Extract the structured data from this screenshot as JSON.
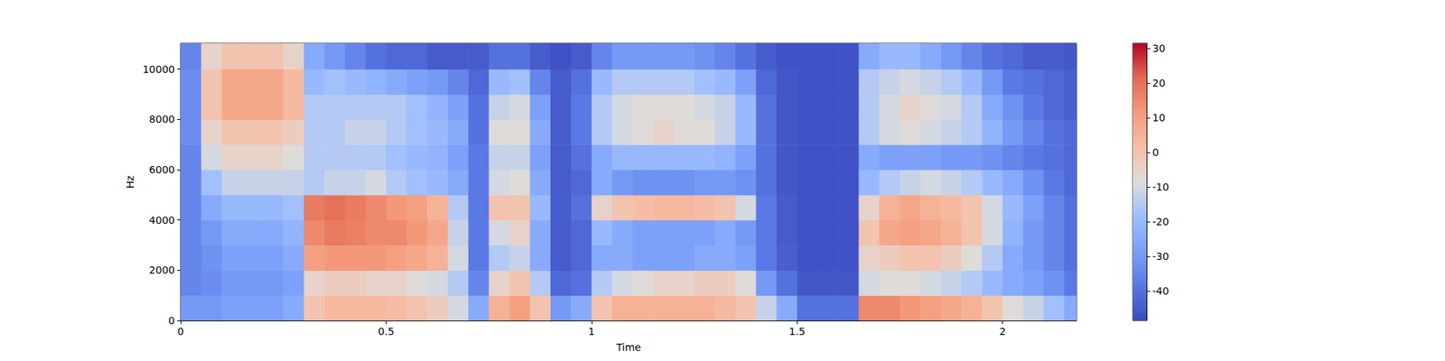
{
  "chart_data": {
    "type": "heatmap",
    "x_label": "Time",
    "y_label": "Hz",
    "xlim": [
      0,
      2.18
    ],
    "xticks": [
      0,
      0.5,
      1,
      1.5,
      2
    ],
    "ylim": [
      0,
      11025
    ],
    "yticks": [
      0,
      2000,
      4000,
      6000,
      8000,
      10000
    ],
    "grid": false,
    "x_edges": [
      0,
      0.05,
      0.1,
      0.15,
      0.2,
      0.25,
      0.3,
      0.35,
      0.4,
      0.45,
      0.5,
      0.55,
      0.6,
      0.65,
      0.7,
      0.75,
      0.8,
      0.85,
      0.9,
      0.95,
      1,
      1.05,
      1.1,
      1.15,
      1.2,
      1.25,
      1.3,
      1.35,
      1.4,
      1.45,
      1.5,
      1.55,
      1.6,
      1.65,
      1.7,
      1.75,
      1.8,
      1.85,
      1.9,
      1.95,
      2,
      2.05,
      2.1,
      2.15,
      2.2
    ],
    "y_edges": [
      0,
      1000,
      2000,
      3000,
      4000,
      5000,
      6000,
      7000,
      8000,
      9000,
      10000,
      11025
    ],
    "cells": [
      [
        -30,
        -35,
        -35,
        -35,
        -35,
        -35,
        -35,
        -33,
        -33,
        -33,
        -35
      ],
      [
        -30,
        -33,
        -32,
        -30,
        -25,
        -18,
        -10,
        -5,
        0,
        0,
        -5
      ],
      [
        -28,
        -30,
        -28,
        -25,
        -20,
        -12,
        -5,
        0,
        8,
        8,
        0
      ],
      [
        -28,
        -30,
        -28,
        -25,
        -20,
        -12,
        -5,
        0,
        8,
        8,
        0
      ],
      [
        -28,
        -30,
        -28,
        -25,
        -20,
        -12,
        -5,
        0,
        8,
        8,
        0
      ],
      [
        -25,
        -28,
        -25,
        -22,
        -18,
        -12,
        -8,
        -3,
        3,
        3,
        -5
      ],
      [
        0,
        -5,
        10,
        15,
        18,
        -15,
        -15,
        -15,
        -15,
        -20,
        -25
      ],
      [
        3,
        -3,
        12,
        18,
        20,
        -12,
        -15,
        -15,
        -15,
        -18,
        -30
      ],
      [
        3,
        -3,
        12,
        17,
        18,
        -12,
        -15,
        -12,
        -15,
        -20,
        -35
      ],
      [
        3,
        -5,
        12,
        15,
        15,
        -10,
        -15,
        -12,
        -15,
        -22,
        -40
      ],
      [
        2,
        -5,
        10,
        15,
        12,
        -15,
        -18,
        -15,
        -15,
        -25,
        -42
      ],
      [
        0,
        -8,
        8,
        12,
        10,
        -18,
        -20,
        -18,
        -18,
        -28,
        -42
      ],
      [
        -3,
        -10,
        5,
        8,
        5,
        -20,
        -22,
        -20,
        -22,
        -30,
        -45
      ],
      [
        -10,
        -15,
        -10,
        -12,
        -15,
        -25,
        -28,
        -25,
        -28,
        -35,
        -45
      ],
      [
        -25,
        -35,
        -38,
        -38,
        -38,
        -38,
        -38,
        -40,
        -40,
        -42,
        -45
      ],
      [
        5,
        -5,
        -15,
        -10,
        0,
        -10,
        -12,
        -8,
        -12,
        -20,
        -40
      ],
      [
        10,
        0,
        -12,
        -5,
        0,
        -8,
        -12,
        -8,
        -10,
        -18,
        -40
      ],
      [
        0,
        -15,
        -25,
        -25,
        -20,
        -25,
        -28,
        -25,
        -28,
        -35,
        -45
      ],
      [
        -30,
        -42,
        -45,
        -45,
        -45,
        -45,
        -45,
        -45,
        -45,
        -45,
        -47
      ],
      [
        -25,
        -40,
        -42,
        -42,
        -40,
        -42,
        -40,
        -38,
        -38,
        -40,
        -45
      ],
      [
        0,
        -15,
        -25,
        -20,
        -5,
        -25,
        -25,
        -15,
        -15,
        -20,
        -35
      ],
      [
        5,
        -10,
        -25,
        -25,
        0,
        -30,
        -20,
        -10,
        -10,
        -15,
        -30
      ],
      [
        5,
        -8,
        -28,
        -28,
        2,
        -32,
        -20,
        -8,
        -8,
        -15,
        -30
      ],
      [
        5,
        -5,
        -28,
        -28,
        3,
        -32,
        -20,
        -5,
        -8,
        -15,
        -30
      ],
      [
        5,
        -5,
        -28,
        -28,
        3,
        -32,
        -20,
        -8,
        -8,
        -15,
        -30
      ],
      [
        5,
        -3,
        -25,
        -28,
        2,
        -30,
        -20,
        -8,
        -10,
        -18,
        -32
      ],
      [
        3,
        -3,
        -25,
        -25,
        0,
        -30,
        -22,
        -12,
        -12,
        -20,
        -35
      ],
      [
        0,
        -8,
        -28,
        -30,
        -10,
        -32,
        -28,
        -20,
        -20,
        -28,
        -40
      ],
      [
        -12,
        -30,
        -38,
        -38,
        -38,
        -40,
        -40,
        -40,
        -40,
        -42,
        -45
      ],
      [
        -25,
        -40,
        -44,
        -45,
        -45,
        -46,
        -46,
        -46,
        -46,
        -46,
        -47
      ],
      [
        -40,
        -46,
        -47,
        -47,
        -47,
        -47,
        -47,
        -47,
        -47,
        -47,
        -47
      ],
      [
        -40,
        -46,
        -47,
        -47,
        -47,
        -47,
        -47,
        -47,
        -47,
        -47,
        -47
      ],
      [
        -40,
        -46,
        -47,
        -47,
        -47,
        -47,
        -47,
        -47,
        -47,
        -47,
        -47
      ],
      [
        15,
        -10,
        -5,
        0,
        -5,
        -20,
        -25,
        -15,
        -15,
        -15,
        -25
      ],
      [
        15,
        -8,
        -3,
        8,
        5,
        -15,
        -28,
        -10,
        -10,
        -12,
        -20
      ],
      [
        12,
        -8,
        0,
        10,
        8,
        -12,
        -28,
        -8,
        -5,
        -10,
        -20
      ],
      [
        10,
        -10,
        0,
        8,
        5,
        -10,
        -28,
        -10,
        -8,
        -12,
        -25
      ],
      [
        8,
        -12,
        -3,
        5,
        3,
        -12,
        -30,
        -12,
        -10,
        -15,
        -30
      ],
      [
        5,
        -15,
        -8,
        0,
        0,
        -15,
        -30,
        -15,
        -15,
        -20,
        -35
      ],
      [
        0,
        -20,
        -15,
        -10,
        -10,
        -20,
        -32,
        -22,
        -25,
        -30,
        -40
      ],
      [
        -8,
        -25,
        -25,
        -22,
        -20,
        -25,
        -35,
        -30,
        -32,
        -38,
        -42
      ],
      [
        -12,
        -28,
        -30,
        -30,
        -28,
        -32,
        -38,
        -35,
        -38,
        -40,
        -45
      ],
      [
        -18,
        -32,
        -35,
        -35,
        -35,
        -38,
        -40,
        -40,
        -42,
        -42,
        -45
      ],
      [
        -25,
        -38,
        -40,
        -40,
        -40,
        -42,
        -42,
        -42,
        -44,
        -44,
        -46
      ]
    ],
    "colorbar": {
      "range": [
        -48.5,
        31.5
      ],
      "ticks": [
        -40,
        -30,
        -20,
        -10,
        0,
        10,
        20,
        30
      ]
    }
  }
}
